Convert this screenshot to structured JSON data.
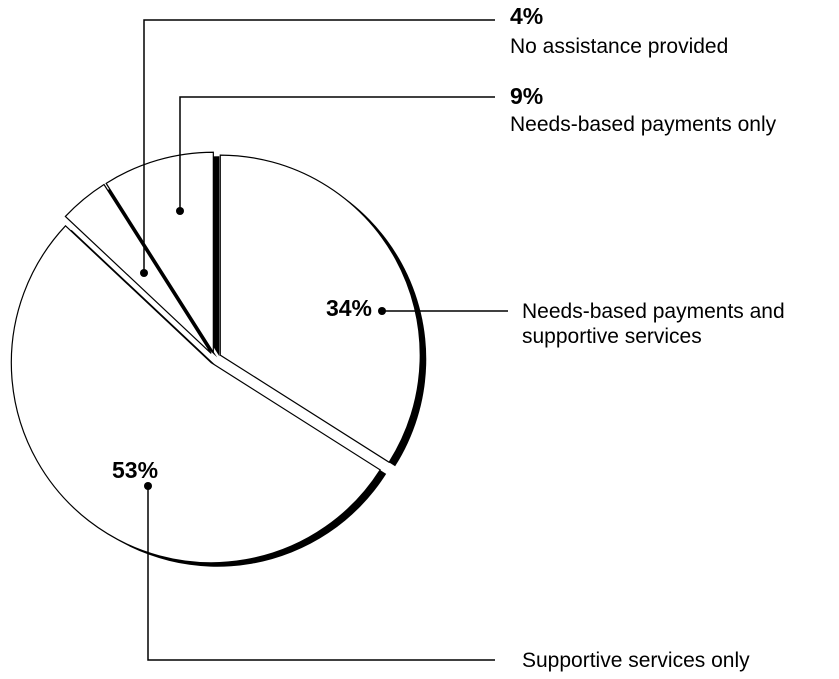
{
  "chart_data": {
    "type": "pie",
    "categories": [
      "Needs-based payments and supportive services",
      "Supportive services only",
      "No assistance provided",
      "Needs-based payments only"
    ],
    "values": [
      34,
      53,
      4,
      9
    ],
    "value_labels": [
      "34%",
      "53%",
      "4%",
      "9%"
    ],
    "color": "#ffffff"
  }
}
